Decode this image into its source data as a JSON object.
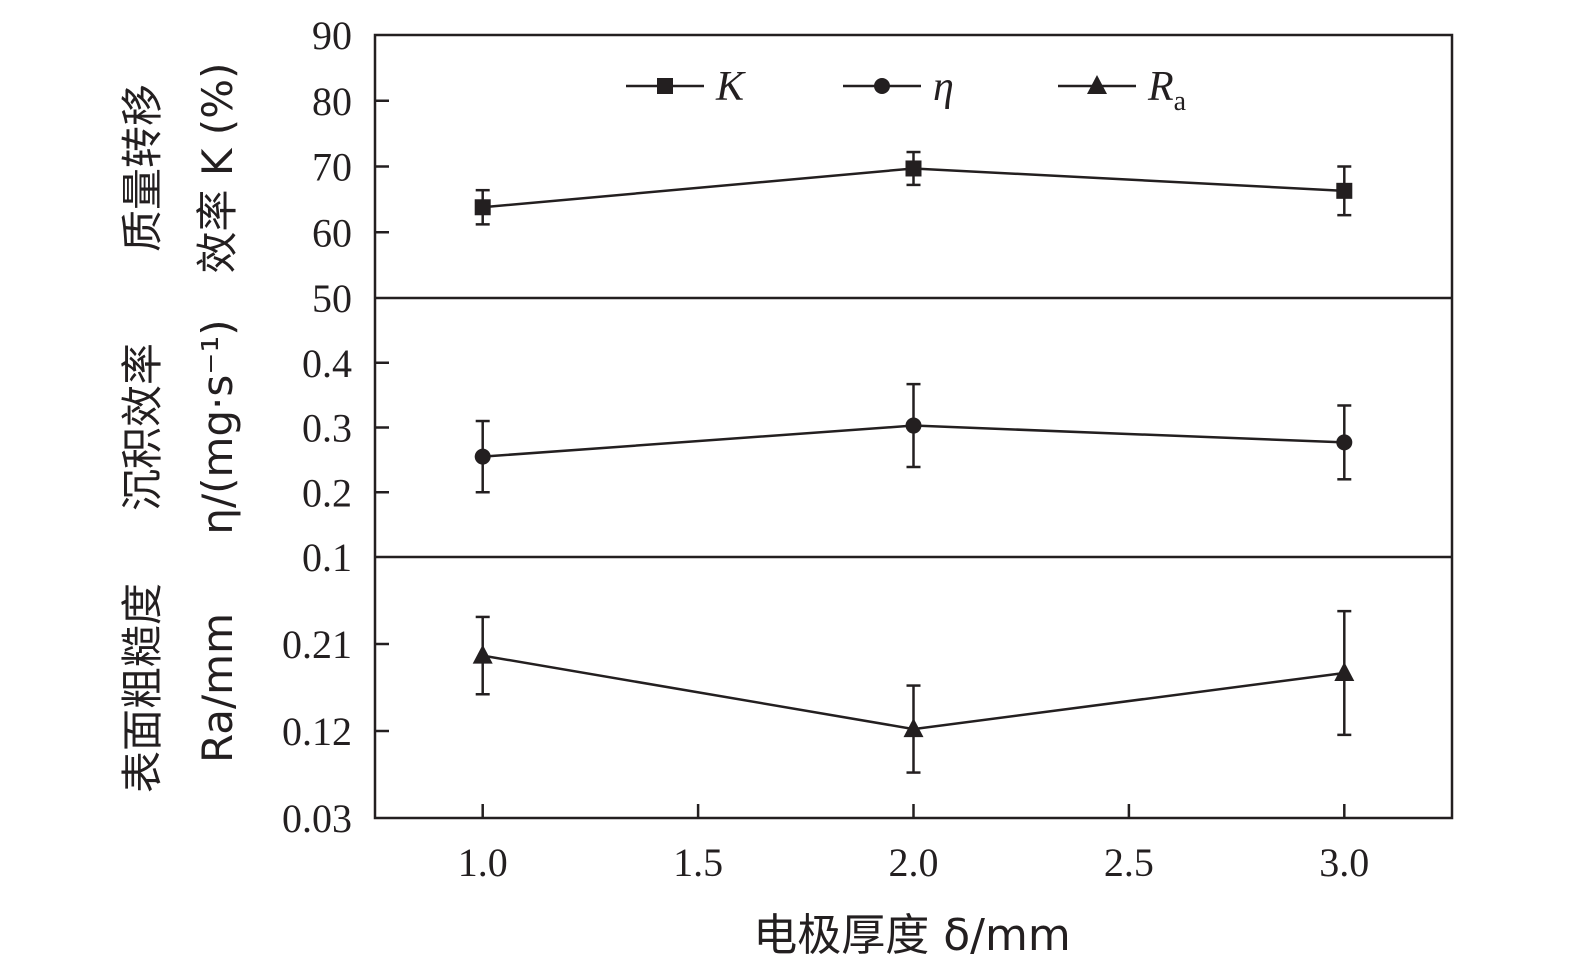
{
  "chart_data": {
    "type": "line",
    "xlabel": "电极厚度 δ/mm",
    "x_ticks": [
      "1.0",
      "1.5",
      "2.0",
      "2.5",
      "3.0"
    ],
    "xlim": [
      0.75,
      3.25
    ],
    "x": [
      1.0,
      2.0,
      3.0
    ],
    "legend": {
      "placement": "top-center",
      "entries": [
        {
          "label": "K",
          "marker": "square"
        },
        {
          "label": "η",
          "marker": "circle"
        },
        {
          "label": "R",
          "sub": "a",
          "marker": "triangle"
        }
      ]
    },
    "panels": [
      {
        "id": "K",
        "ylabel_line1": "质量转移",
        "ylabel_line2": "效率 K (%)",
        "ylim": [
          50,
          90
        ],
        "y_ticks": [
          "50",
          "60",
          "70",
          "80",
          "90"
        ],
        "marker": "square",
        "values": [
          63.8,
          69.7,
          66.3
        ],
        "errors": [
          2.6,
          2.5,
          3.7
        ]
      },
      {
        "id": "eta",
        "ylabel_line1": "沉积效率",
        "ylabel_line2": "η/(mg·s⁻¹)",
        "ylim": [
          0.1,
          0.5
        ],
        "y_ticks": [
          "0.1",
          "0.2",
          "0.3",
          "0.4"
        ],
        "marker": "circle",
        "values": [
          0.255,
          0.303,
          0.277
        ],
        "errors": [
          0.055,
          0.064,
          0.057
        ]
      },
      {
        "id": "Ra",
        "ylabel_line1": "表面粗糙度",
        "ylabel_line2": "Ra/mm",
        "ylim": [
          0.03,
          0.3
        ],
        "y_ticks": [
          "0.03",
          "0.12",
          "0.21"
        ],
        "marker": "triangle",
        "values": [
          0.198,
          0.122,
          0.18
        ],
        "errors": [
          0.04,
          0.045,
          0.064
        ]
      }
    ],
    "grid": false,
    "color": "#231f20"
  }
}
